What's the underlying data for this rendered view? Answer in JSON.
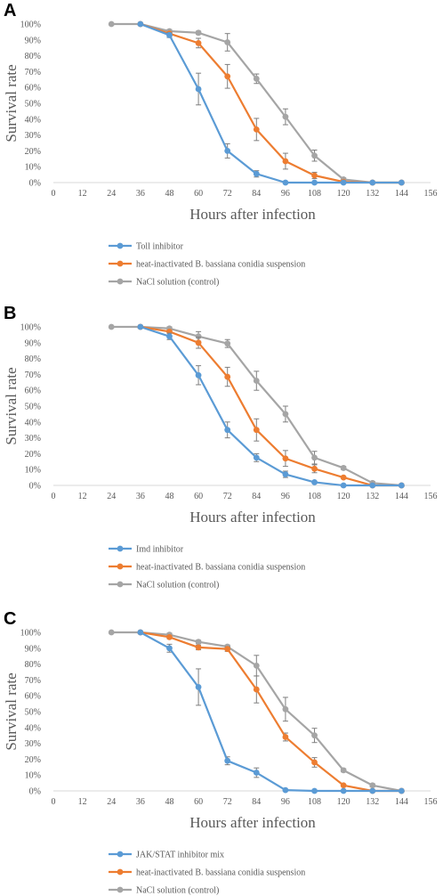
{
  "chart_data": [
    {
      "type": "line",
      "panel_label": "A",
      "xlabel": "Hours after infection",
      "ylabel": "Survival rate",
      "xlim": [
        0,
        156
      ],
      "x_ticks": [
        "0",
        "12",
        "24",
        "36",
        "48",
        "60",
        "72",
        "84",
        "96",
        "108",
        "120",
        "132",
        "144",
        "156"
      ],
      "ylim": [
        0,
        100
      ],
      "y_ticks": [
        "0%",
        "10%",
        "20%",
        "30%",
        "40%",
        "50%",
        "60%",
        "70%",
        "80%",
        "90%",
        "100%"
      ],
      "grid": false,
      "legend_position": "bottom",
      "series": [
        {
          "name": "Toll inhibitor",
          "color": "#5B9BD5",
          "x": [
            36,
            48,
            60,
            72,
            84,
            96,
            108,
            120,
            132,
            144
          ],
          "y": [
            100,
            93,
            59,
            20,
            5.5,
            0,
            0,
            0,
            0,
            0
          ],
          "err": [
            0,
            1.5,
            10,
            4.5,
            2,
            0,
            0,
            0,
            0,
            0
          ]
        },
        {
          "name": "heat-inactivated B. bassiana conidia suspension",
          "color": "#ED7D31",
          "x": [
            36,
            48,
            60,
            72,
            84,
            96,
            108,
            120,
            132,
            144
          ],
          "y": [
            100,
            94,
            88,
            67,
            33.5,
            13.5,
            4.5,
            0.5,
            0,
            0
          ],
          "err": [
            0,
            1,
            3,
            7.5,
            7,
            5,
            2,
            0.5,
            0,
            0
          ]
        },
        {
          "name": "NaCl solution (control)",
          "color": "#A5A5A5",
          "x": [
            24,
            36,
            48,
            60,
            72,
            84,
            96,
            108,
            120,
            132,
            144
          ],
          "y": [
            100,
            100,
            95.5,
            94.5,
            88.5,
            65.5,
            41.5,
            17,
            2,
            0,
            0
          ],
          "err": [
            0,
            0,
            1,
            1,
            5.5,
            3,
            5,
            3.5,
            1,
            0,
            0
          ]
        }
      ]
    },
    {
      "type": "line",
      "panel_label": "B",
      "xlabel": "Hours after infection",
      "ylabel": "Survival rate",
      "xlim": [
        0,
        156
      ],
      "x_ticks": [
        "0",
        "12",
        "24",
        "36",
        "48",
        "60",
        "72",
        "84",
        "96",
        "108",
        "120",
        "132",
        "144",
        "156"
      ],
      "ylim": [
        0,
        100
      ],
      "y_ticks": [
        "0%",
        "10%",
        "20%",
        "30%",
        "40%",
        "50%",
        "60%",
        "70%",
        "80%",
        "90%",
        "100%"
      ],
      "grid": false,
      "legend_position": "bottom",
      "series": [
        {
          "name": "Imd inhibitor",
          "color": "#5B9BD5",
          "x": [
            36,
            48,
            60,
            72,
            84,
            96,
            108,
            120,
            132,
            144
          ],
          "y": [
            100,
            94,
            69.5,
            35,
            17.5,
            7,
            2,
            0,
            0,
            0
          ],
          "err": [
            0,
            2,
            6,
            5,
            2.5,
            2,
            0.5,
            0,
            0,
            0
          ]
        },
        {
          "name": "heat-inactivated B. bassiana conidia suspension",
          "color": "#ED7D31",
          "x": [
            36,
            48,
            60,
            72,
            84,
            96,
            108,
            120,
            132,
            144
          ],
          "y": [
            100,
            97,
            90,
            68.5,
            35,
            17,
            10.5,
            5,
            0,
            0
          ],
          "err": [
            0,
            1,
            3.5,
            6,
            7,
            5,
            2.5,
            0.5,
            0,
            0
          ]
        },
        {
          "name": "NaCl solution (control)",
          "color": "#A5A5A5",
          "x": [
            24,
            36,
            48,
            60,
            72,
            84,
            96,
            108,
            120,
            132,
            144
          ],
          "y": [
            100,
            100,
            99,
            94,
            89.5,
            66,
            45,
            17.5,
            11,
            1.5,
            0
          ],
          "err": [
            0,
            0,
            1,
            3,
            2.5,
            6,
            5,
            4,
            1,
            1,
            0
          ]
        }
      ]
    },
    {
      "type": "line",
      "panel_label": "C",
      "xlabel": "Hours after infection",
      "ylabel": "Survival rate",
      "xlim": [
        0,
        156
      ],
      "x_ticks": [
        "0",
        "12",
        "24",
        "36",
        "48",
        "60",
        "72",
        "84",
        "96",
        "108",
        "120",
        "132",
        "144",
        "156"
      ],
      "ylim": [
        0,
        100
      ],
      "y_ticks": [
        "0%",
        "10%",
        "20%",
        "30%",
        "40%",
        "50%",
        "60%",
        "70%",
        "80%",
        "90%",
        "100%"
      ],
      "grid": false,
      "legend_position": "bottom",
      "series": [
        {
          "name": "JAK/STAT inhibitor mix",
          "color": "#5B9BD5",
          "x": [
            36,
            48,
            60,
            72,
            84,
            96,
            108,
            120,
            132,
            144
          ],
          "y": [
            100,
            90,
            65.5,
            19,
            11.5,
            0.5,
            0,
            0,
            0,
            0
          ],
          "err": [
            0,
            2.5,
            11.5,
            2.5,
            3,
            0.5,
            0,
            0,
            0,
            0
          ]
        },
        {
          "name": "heat-inactivated B. bassiana conidia suspension",
          "color": "#ED7D31",
          "x": [
            36,
            48,
            60,
            72,
            84,
            96,
            108,
            120,
            132,
            144
          ],
          "y": [
            100,
            97,
            90.5,
            89.5,
            64,
            34,
            18,
            3.5,
            0,
            0
          ],
          "err": [
            0,
            1,
            1.5,
            1.5,
            8.5,
            2.5,
            3,
            0.5,
            0,
            0
          ]
        },
        {
          "name": "NaCl solution (control)",
          "color": "#A5A5A5",
          "x": [
            24,
            36,
            48,
            60,
            72,
            84,
            96,
            108,
            120,
            132,
            144
          ],
          "y": [
            100,
            100,
            98.5,
            94,
            91,
            79,
            51.5,
            35,
            13,
            3.5,
            0
          ],
          "err": [
            0,
            0,
            1,
            1,
            1,
            6.5,
            7.5,
            4.5,
            1,
            1,
            0
          ]
        }
      ]
    }
  ]
}
